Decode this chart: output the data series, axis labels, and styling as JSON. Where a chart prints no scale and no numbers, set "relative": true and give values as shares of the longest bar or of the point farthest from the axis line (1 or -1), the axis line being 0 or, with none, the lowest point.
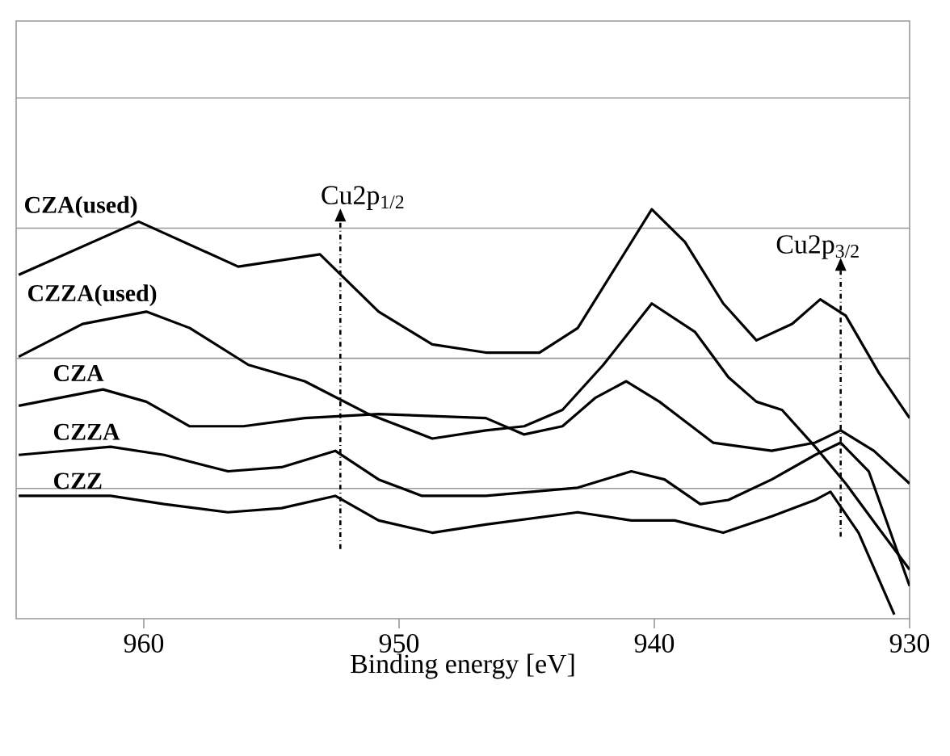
{
  "chart_data": {
    "type": "line",
    "relative": true,
    "xlabel": "Binding energy [eV]",
    "xlim": [
      965,
      930
    ],
    "xticks": [
      960,
      950,
      940,
      930
    ],
    "grid": "y",
    "legend": false,
    "marker": "none",
    "line_style": "solid",
    "ref_lines": [
      {
        "axis": "x",
        "value": 952.3,
        "label": "Cu2p$_{1/2}$",
        "line_style": "dashdot"
      },
      {
        "axis": "x",
        "value": 932.7,
        "label": "Cu2p$_{3/2}$",
        "line_style": "dashdot"
      }
    ],
    "series": [
      {
        "name": "CZA(used)",
        "color": "#000000",
        "x": [
          964.9,
          960.2,
          956.3,
          953.1,
          950.8,
          948.7,
          946.6,
          944.5,
          943.0,
          941.3,
          940.1,
          938.8,
          937.3,
          936.0,
          934.6,
          933.5,
          932.5,
          931.2,
          930.0
        ],
        "values": [
          0.84,
          0.97,
          0.86,
          0.89,
          0.75,
          0.67,
          0.65,
          0.65,
          0.71,
          0.88,
          1.0,
          0.92,
          0.77,
          0.68,
          0.72,
          0.78,
          0.74,
          0.6,
          0.49
        ]
      },
      {
        "name": "CZZA(used)",
        "color": "#000000",
        "x": [
          964.9,
          962.4,
          959.9,
          958.2,
          955.9,
          953.7,
          951.2,
          948.7,
          946.6,
          945.1,
          943.6,
          942.0,
          940.1,
          938.4,
          937.1,
          936.0,
          935.0,
          933.7,
          932.5,
          931.2,
          930.0
        ],
        "values": [
          0.64,
          0.72,
          0.75,
          0.71,
          0.62,
          0.58,
          0.5,
          0.44,
          0.46,
          0.47,
          0.51,
          0.62,
          0.77,
          0.7,
          0.59,
          0.53,
          0.51,
          0.42,
          0.33,
          0.22,
          0.12
        ]
      },
      {
        "name": "CZA",
        "color": "#000000",
        "x": [
          964.9,
          961.6,
          959.9,
          958.2,
          956.1,
          953.7,
          950.8,
          946.6,
          945.1,
          943.6,
          942.3,
          941.1,
          939.8,
          937.7,
          935.4,
          933.7,
          932.7,
          931.4,
          930.0
        ],
        "values": [
          0.52,
          0.56,
          0.53,
          0.47,
          0.47,
          0.49,
          0.5,
          0.49,
          0.45,
          0.47,
          0.54,
          0.58,
          0.53,
          0.43,
          0.41,
          0.43,
          0.46,
          0.41,
          0.33
        ]
      },
      {
        "name": "CZZA",
        "color": "#000000",
        "x": [
          964.9,
          961.3,
          959.2,
          956.7,
          954.6,
          952.5,
          950.8,
          949.1,
          946.6,
          943.0,
          940.9,
          939.6,
          938.2,
          937.1,
          935.4,
          933.7,
          932.7,
          931.6,
          930.0
        ],
        "values": [
          0.4,
          0.42,
          0.4,
          0.36,
          0.37,
          0.41,
          0.34,
          0.3,
          0.3,
          0.32,
          0.36,
          0.34,
          0.28,
          0.29,
          0.34,
          0.4,
          0.43,
          0.36,
          0.08
        ]
      },
      {
        "name": "CZZ",
        "color": "#000000",
        "x": [
          964.9,
          961.3,
          959.2,
          956.7,
          954.6,
          952.5,
          950.8,
          948.7,
          946.6,
          943.0,
          940.9,
          939.2,
          937.3,
          935.4,
          933.7,
          933.1,
          932.0,
          930.6
        ],
        "values": [
          0.3,
          0.3,
          0.28,
          0.26,
          0.27,
          0.3,
          0.24,
          0.21,
          0.23,
          0.26,
          0.24,
          0.24,
          0.21,
          0.25,
          0.29,
          0.31,
          0.21,
          0.01
        ]
      }
    ]
  }
}
